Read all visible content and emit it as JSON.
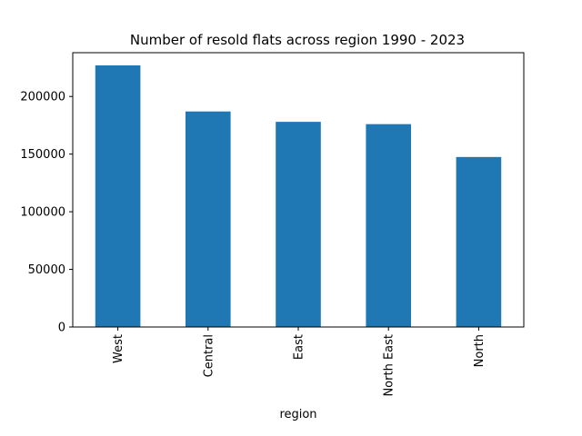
{
  "chart_data": {
    "type": "bar",
    "title": "Number of resold flats across region 1990 - 2023",
    "xlabel": "region",
    "ylabel": "",
    "categories": [
      "West",
      "Central",
      "East",
      "North East",
      "North"
    ],
    "values": [
      227000,
      187000,
      178000,
      176000,
      147500
    ],
    "ylim": [
      0,
      238000
    ],
    "yticks": [
      0,
      50000,
      100000,
      150000,
      200000
    ],
    "ytick_labels": [
      "0",
      "50000",
      "100000",
      "150000",
      "200000"
    ],
    "bar_color": "#1f77b4",
    "grid": false,
    "legend": "none"
  }
}
